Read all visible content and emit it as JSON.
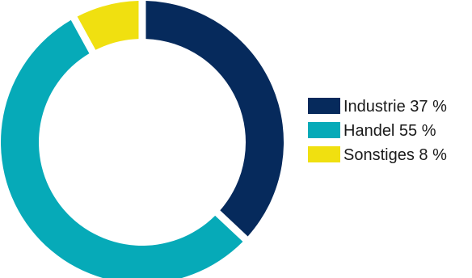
{
  "chart_data": {
    "type": "pie",
    "donut": true,
    "categories": [
      "Industrie",
      "Handel",
      "Sonstiges"
    ],
    "values": [
      37,
      55,
      8
    ],
    "unit": "%",
    "colors": [
      "#062a5c",
      "#06aab8",
      "#f0e010"
    ],
    "legend": {
      "placement": "right",
      "labels": [
        "Industrie 37 %",
        "Handel 55 %",
        "Sonstiges 8 %"
      ]
    }
  }
}
